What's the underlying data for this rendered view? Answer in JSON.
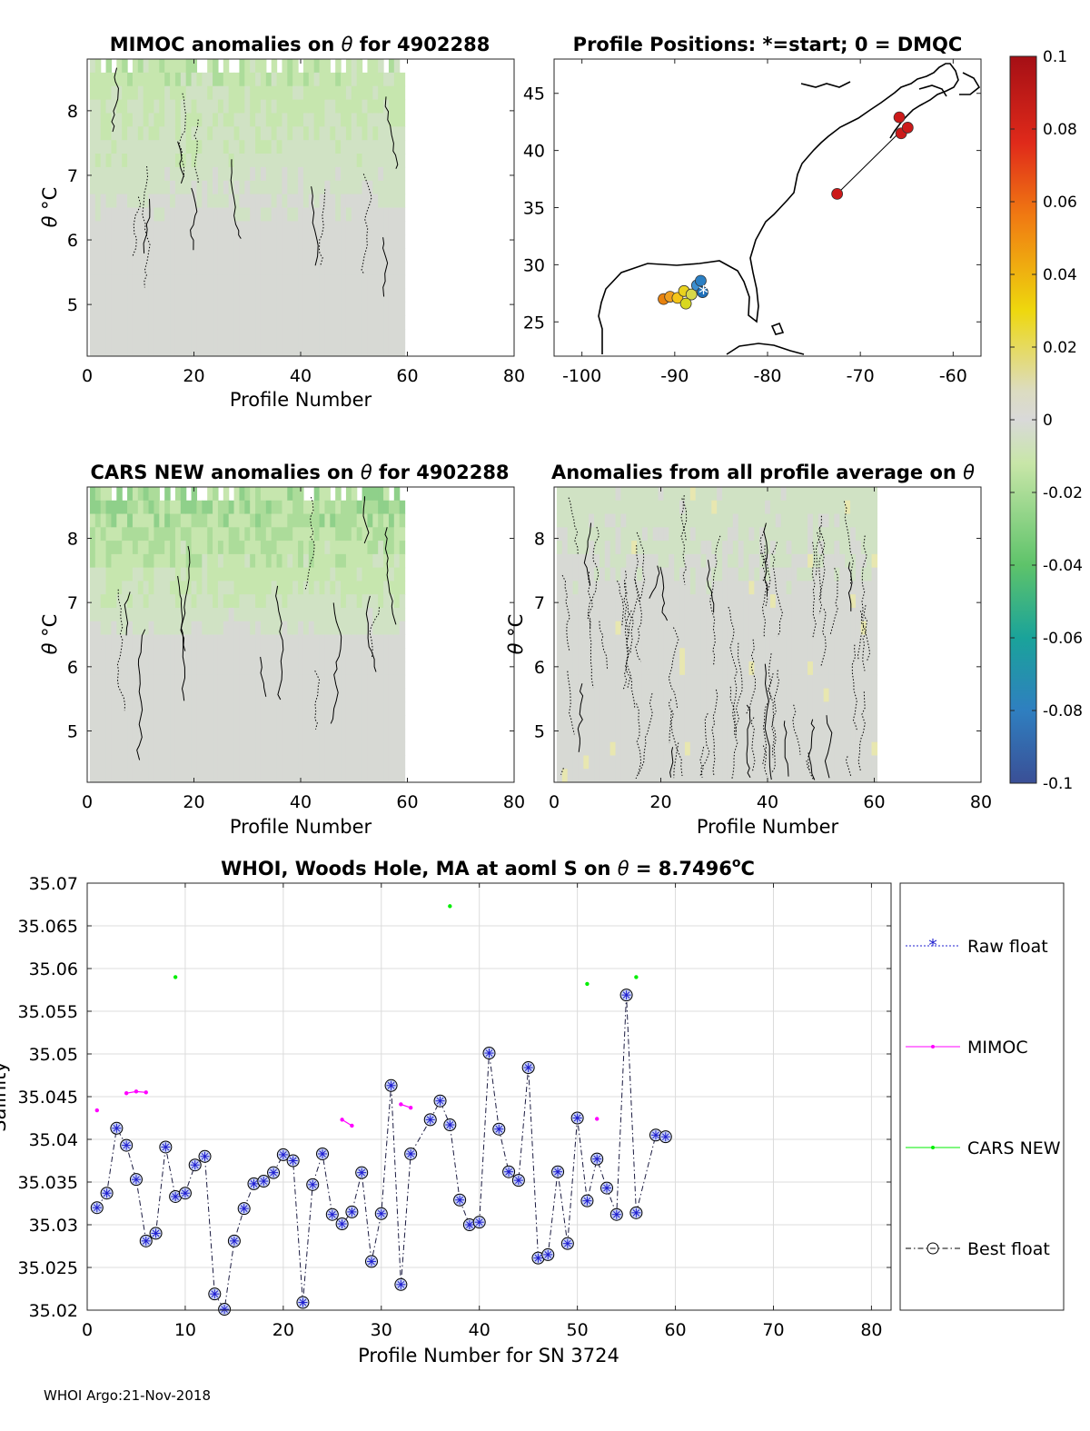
{
  "footer": "WHOI Argo:21-Nov-2018",
  "panels": {
    "mimoc": {
      "title_a": "MIMOC anomalies on ",
      "title_theta": "θ",
      "title_b": "  for 4902288",
      "xlabel": "Profile Number",
      "ylabel_theta": "θ",
      "ylabel_unit": "°C",
      "xticks": [
        "0",
        "20",
        "40",
        "60",
        "80"
      ],
      "yticks": [
        "5",
        "6",
        "7",
        "8"
      ]
    },
    "positions": {
      "title": "Profile Positions: *=start; 0 = DMQC",
      "xticks": [
        "-100",
        "-90",
        "-80",
        "-70",
        "-60"
      ],
      "yticks": [
        "25",
        "30",
        "35",
        "40",
        "45"
      ]
    },
    "cars": {
      "title_a": "CARS NEW anomalies on ",
      "title_theta": "θ",
      "title_b": " for 4902288",
      "xlabel": "Profile Number",
      "ylabel_theta": "θ",
      "ylabel_unit": "°C",
      "xticks": [
        "0",
        "20",
        "40",
        "60",
        "80"
      ],
      "yticks": [
        "5",
        "6",
        "7",
        "8"
      ]
    },
    "allavg": {
      "title_a": "Anomalies from all profile average on ",
      "title_theta": "θ",
      "xlabel": "Profile Number",
      "ylabel_theta": "θ",
      "ylabel_unit": "°C",
      "xticks": [
        "0",
        "20",
        "40",
        "60",
        "80"
      ],
      "yticks": [
        "5",
        "6",
        "7",
        "8"
      ]
    },
    "colorbar": {
      "ticks": [
        "0.1",
        "0.08",
        "0.06",
        "0.04",
        "0.02",
        "0",
        "-0.02",
        "-0.04",
        "-0.06",
        "-0.08",
        "-0.1"
      ]
    }
  },
  "chart_data": [
    {
      "type": "heatmap",
      "id": "mimoc",
      "title": "MIMOC anomalies on θ for 4902288",
      "xlabel": "Profile Number",
      "ylabel": "θ °C",
      "xlim": [
        0,
        80
      ],
      "ylim": [
        4.2,
        8.8
      ],
      "profiles": [
        1,
        59
      ],
      "clim": [
        -0.1,
        0.1
      ]
    },
    {
      "type": "scatter",
      "id": "positions",
      "title": "Profile Positions: *=start; 0 = DMQC",
      "xlim": [
        -103,
        -57
      ],
      "ylim": [
        22,
        48
      ],
      "points": [
        {
          "lon": -72.5,
          "lat": 36.2
        },
        {
          "lon": -65.6,
          "lat": 41.5
        },
        {
          "lon": -64.9,
          "lat": 42.0
        },
        {
          "lon": -65.8,
          "lat": 42.9
        },
        {
          "lon": -91.2,
          "lat": 27.0
        },
        {
          "lon": -90.5,
          "lat": 27.2
        },
        {
          "lon": -89.7,
          "lat": 27.1
        },
        {
          "lon": -89.0,
          "lat": 27.7
        },
        {
          "lon": -88.2,
          "lat": 27.4
        },
        {
          "lon": -87.6,
          "lat": 28.2
        },
        {
          "lon": -87.0,
          "lat": 27.6
        },
        {
          "lon": -87.2,
          "lat": 28.6
        },
        {
          "lon": -88.8,
          "lat": 26.6
        }
      ],
      "start": {
        "lon": -86.9,
        "lat": 27.6
      }
    },
    {
      "type": "heatmap",
      "id": "cars",
      "title": "CARS NEW anomalies on θ for 4902288",
      "xlabel": "Profile Number",
      "ylabel": "θ °C",
      "xlim": [
        0,
        80
      ],
      "ylim": [
        4.2,
        8.8
      ],
      "profiles": [
        1,
        59
      ],
      "clim": [
        -0.1,
        0.1
      ]
    },
    {
      "type": "heatmap",
      "id": "allavg",
      "title": "Anomalies from all profile average on θ",
      "xlabel": "Profile Number",
      "ylabel": "θ °C",
      "xlim": [
        0,
        80
      ],
      "ylim": [
        4.2,
        8.8
      ],
      "profiles": [
        1,
        60
      ],
      "clim": [
        -0.1,
        0.1
      ]
    },
    {
      "type": "line",
      "id": "salinity",
      "title_a": "WHOI, Woods Hole, MA at aoml S on ",
      "title_theta": "θ",
      "title_b": " = 8.7496",
      "title_deg": "o",
      "title_c": "C",
      "xlabel": "Profile Number for SN 3724",
      "ylabel": "Salinity",
      "xlim": [
        0,
        82
      ],
      "ylim": [
        35.02,
        35.07
      ],
      "xticks": [
        "0",
        "10",
        "20",
        "30",
        "40",
        "50",
        "60",
        "70",
        "80"
      ],
      "yticks": [
        "35.02",
        "35.025",
        "35.03",
        "35.035",
        "35.04",
        "35.045",
        "35.05",
        "35.055",
        "35.06",
        "35.065",
        "35.07"
      ],
      "legend": [
        "Raw float",
        "MIMOC",
        "CARS NEW",
        "Best float"
      ],
      "series": [
        {
          "name": "Best float",
          "x": [
            1,
            2,
            3,
            4,
            5,
            6,
            7,
            8,
            9,
            10,
            11,
            12,
            13,
            14,
            15,
            16,
            17,
            18,
            19,
            20,
            21,
            22,
            23,
            24,
            25,
            26,
            27,
            28,
            29,
            30,
            31,
            32,
            33,
            35,
            36,
            37,
            38,
            39,
            40,
            41,
            42,
            43,
            44,
            45,
            46,
            47,
            48,
            49,
            50,
            51,
            52,
            53,
            54,
            55,
            56,
            58,
            59
          ],
          "values": [
            35.032,
            35.0337,
            35.0413,
            35.0393,
            35.0353,
            35.0281,
            35.029,
            35.0391,
            35.0333,
            35.0337,
            35.037,
            35.038,
            35.0219,
            35.0201,
            35.0281,
            35.0319,
            35.0348,
            35.0351,
            35.0361,
            35.0382,
            35.0375,
            35.0209,
            35.0347,
            35.0383,
            35.0312,
            35.0301,
            35.0315,
            35.0361,
            35.0257,
            35.0313,
            35.0463,
            35.023,
            35.0383,
            35.0423,
            35.0445,
            35.0417,
            35.0329,
            35.03,
            35.0303,
            35.0501,
            35.0412,
            35.0362,
            35.0352,
            35.0484,
            35.0261,
            35.0265,
            35.0362,
            35.0278,
            35.0425,
            35.0328,
            35.0377,
            35.0343,
            35.0312,
            35.0569,
            35.0314,
            35.0405,
            35.0403
          ]
        },
        {
          "name": "MIMOC",
          "segments": [
            {
              "x": [
                1
              ],
              "values": [
                35.0434
              ]
            },
            {
              "x": [
                4,
                5,
                6
              ],
              "values": [
                35.0454,
                35.0456,
                35.0455
              ]
            },
            {
              "x": [
                26,
                27
              ],
              "values": [
                35.0423,
                35.0416
              ]
            },
            {
              "x": [
                32,
                33
              ],
              "values": [
                35.0441,
                35.0437
              ]
            },
            {
              "x": [
                52
              ],
              "values": [
                35.0424
              ]
            }
          ]
        },
        {
          "name": "CARS NEW",
          "segments": [
            {
              "x": [
                9
              ],
              "values": [
                35.059
              ]
            },
            {
              "x": [
                37
              ],
              "values": [
                35.0673
              ]
            },
            {
              "x": [
                51
              ],
              "values": [
                35.0582
              ]
            },
            {
              "x": [
                56
              ],
              "values": [
                35.059
              ]
            }
          ]
        }
      ]
    }
  ]
}
